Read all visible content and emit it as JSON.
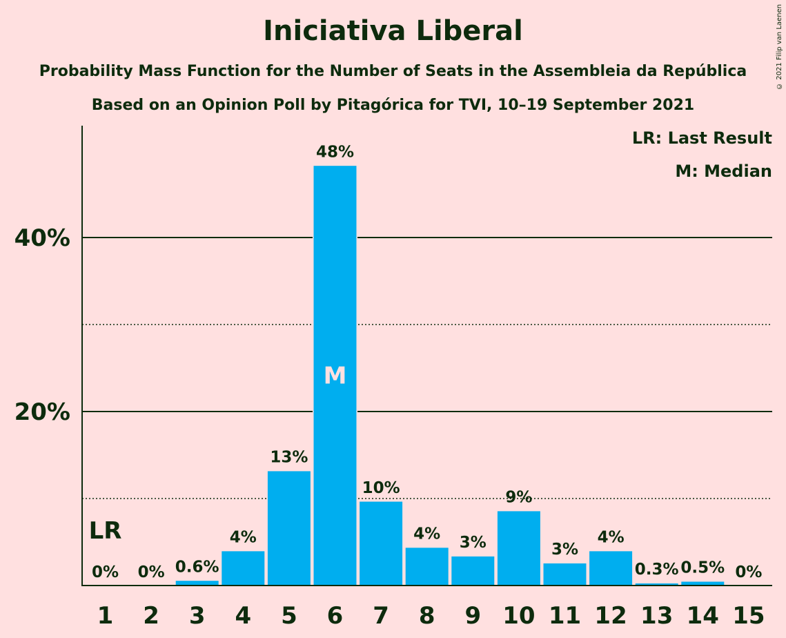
{
  "chart_data": {
    "type": "bar",
    "title": "Iniciativa Liberal",
    "subtitle": "Probability Mass Function for the Number of Seats in the Assembleia da República",
    "subtitle2": "Based on an Opinion Poll by Pitagórica for TVI, 10–19 September 2021",
    "copyright": "© 2021 Filip van Laenen",
    "legend": [
      "LR: Last Result",
      "M: Median"
    ],
    "legend_position": "top-right",
    "categories": [
      "1",
      "2",
      "3",
      "4",
      "5",
      "6",
      "7",
      "8",
      "9",
      "10",
      "11",
      "12",
      "13",
      "14",
      "15"
    ],
    "values": [
      0,
      0,
      0.6,
      4,
      13.2,
      48.3,
      9.7,
      4.4,
      3.4,
      8.6,
      2.6,
      4.0,
      0.3,
      0.5,
      0
    ],
    "labels": [
      "0%",
      "0%",
      "0.6%",
      "4%",
      "13%",
      "48%",
      "10%",
      "4%",
      "3%",
      "9%",
      "3%",
      "4%",
      "0.3%",
      "0.5%",
      "0%"
    ],
    "ylim": [
      0,
      52.5
    ],
    "yticks": [
      {
        "value": 20,
        "label": "20%"
      },
      {
        "value": 40,
        "label": "40%"
      }
    ],
    "minor_gridlines": [
      10,
      30
    ],
    "grid": true,
    "last_result": {
      "category": "1",
      "label": "LR"
    },
    "median": {
      "category": "6",
      "label": "M"
    },
    "colors": {
      "bar": "#00AEEF",
      "background": "#FFE0E0",
      "text": "#0D2B0D",
      "median_label": "#FFE0E0"
    }
  }
}
